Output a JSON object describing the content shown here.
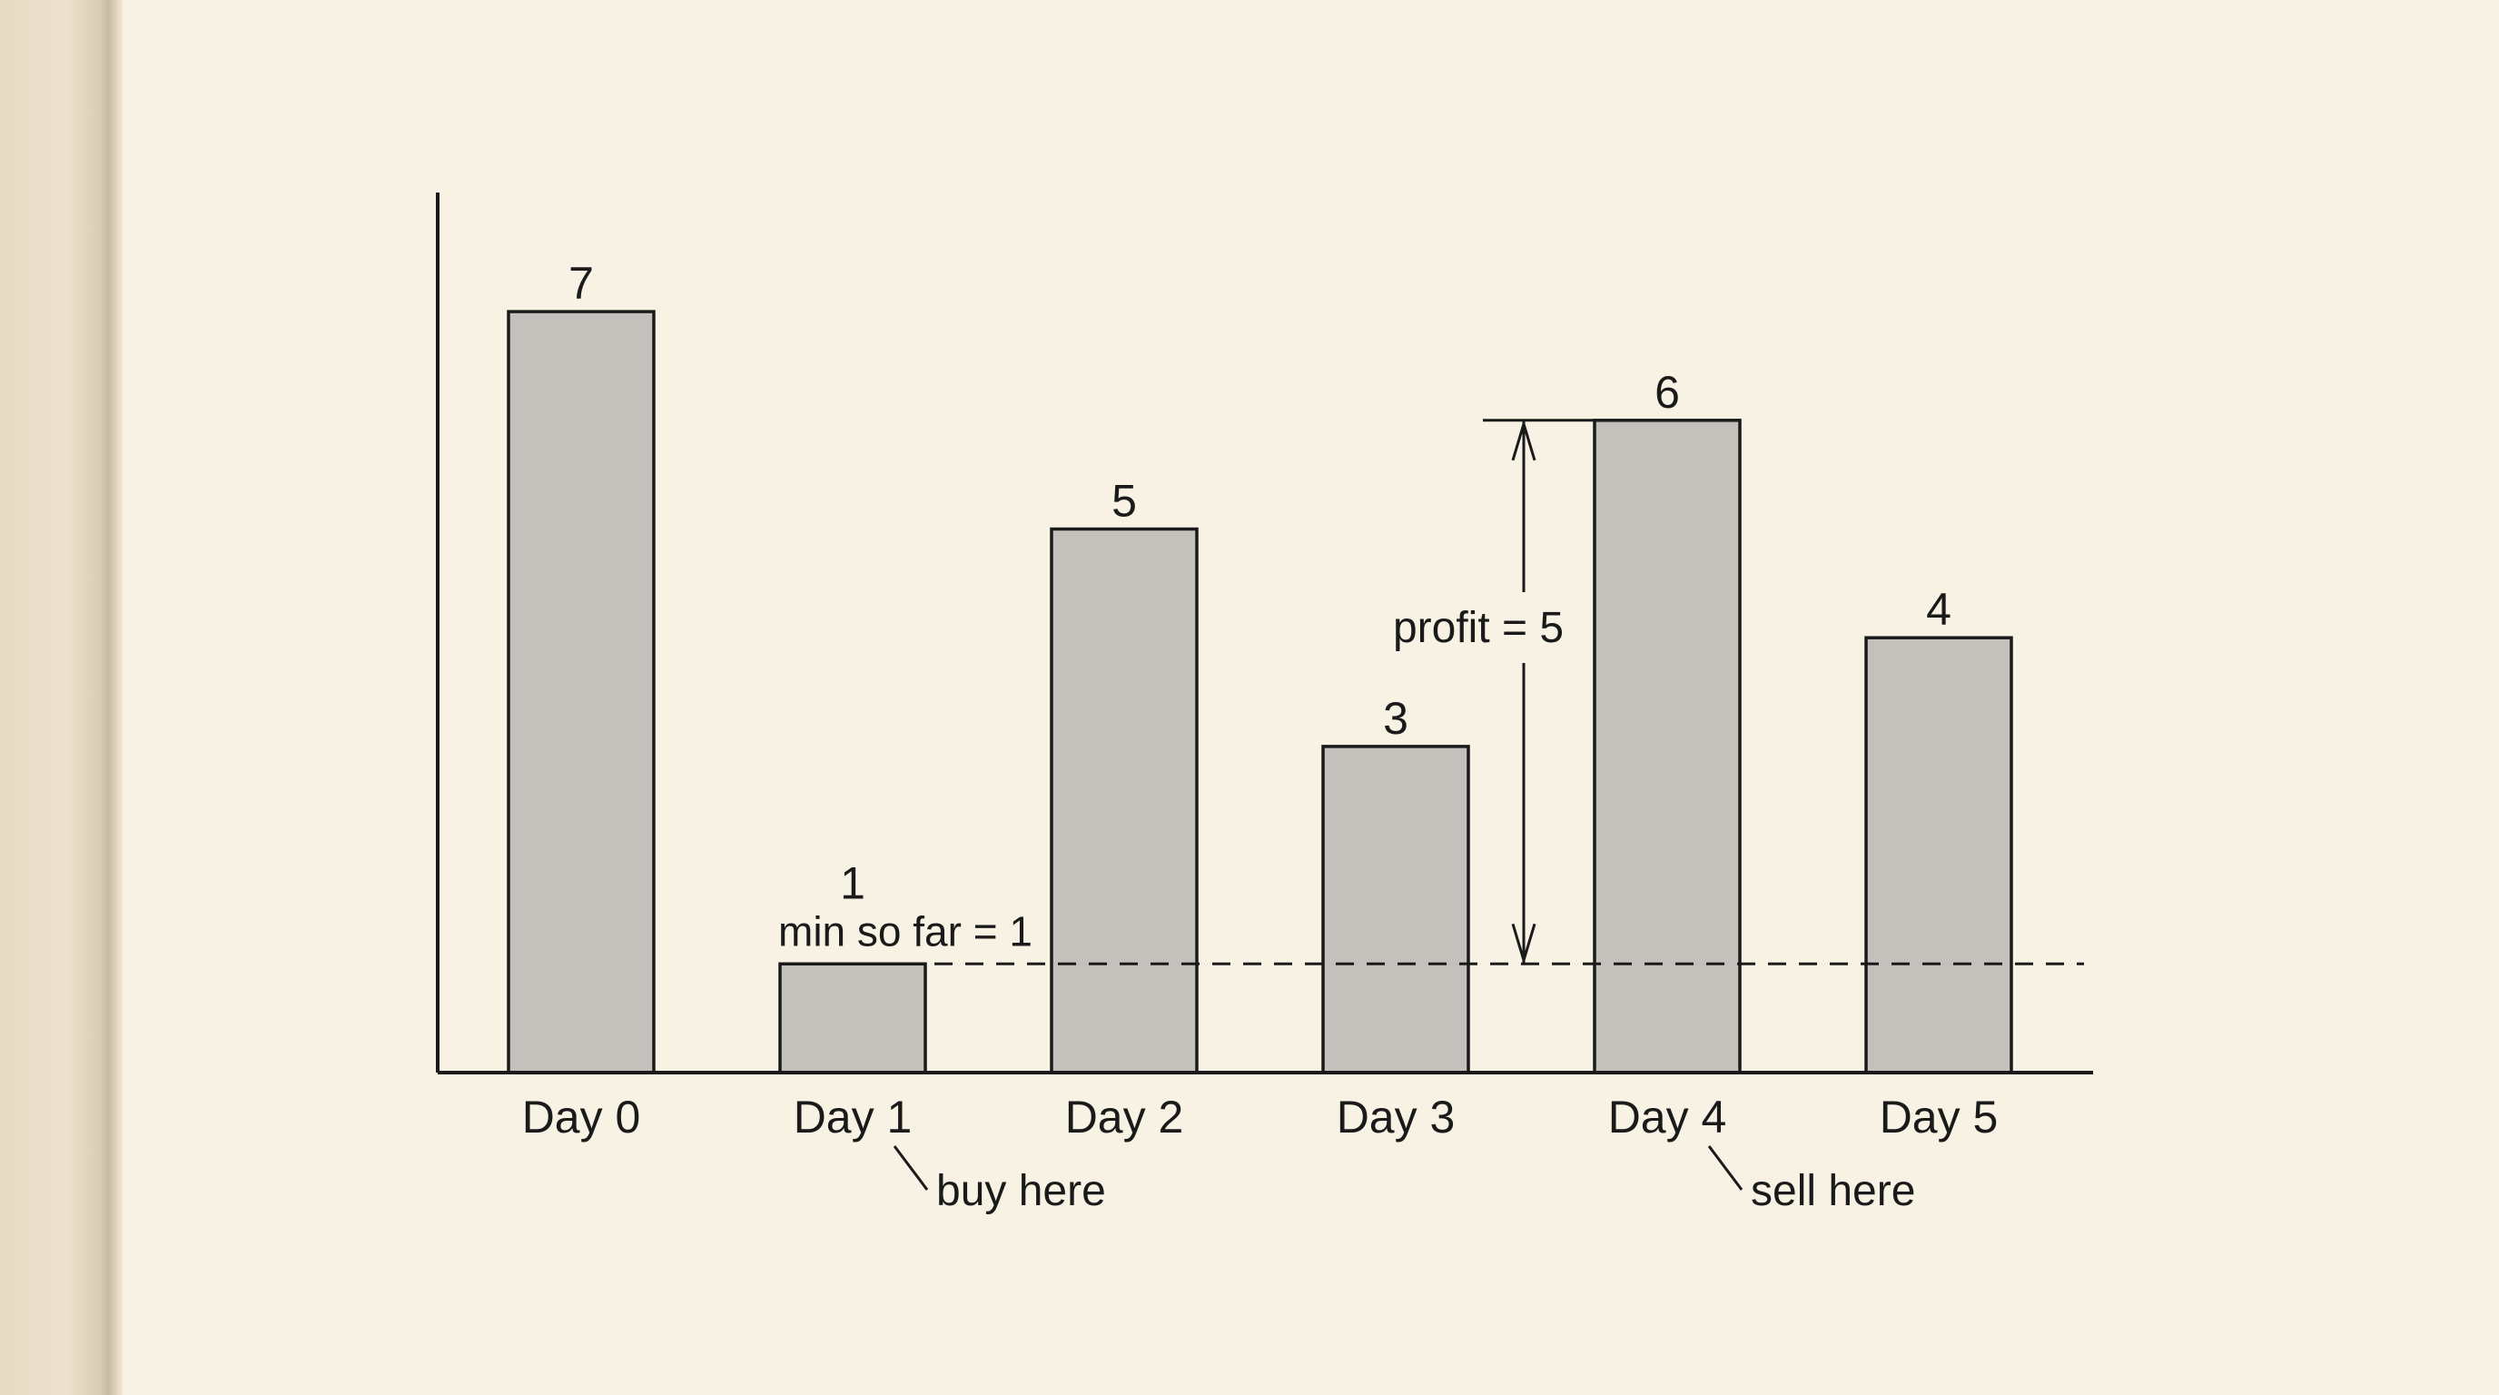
{
  "chart_data": {
    "type": "bar",
    "categories": [
      "Day 0",
      "Day 1",
      "Day 2",
      "Day 3",
      "Day 4",
      "Day 5"
    ],
    "values": [
      7,
      1,
      5,
      3,
      6,
      4
    ],
    "ylim": [
      0,
      8
    ],
    "grid": false,
    "legend": "none",
    "colors": {
      "bar_fill": "#c4c0bb",
      "bar_stroke": "#1a1a1a",
      "axis": "#1a1a1a",
      "background": "#f7f2e3"
    },
    "annotations": {
      "min_label": "min so far = 1",
      "min_value": 1,
      "profit_label": "profit = 5",
      "profit_from": 1,
      "profit_to": 6,
      "buy_label": "buy here",
      "buy_index": 1,
      "sell_label": "sell here",
      "sell_index": 4
    }
  }
}
